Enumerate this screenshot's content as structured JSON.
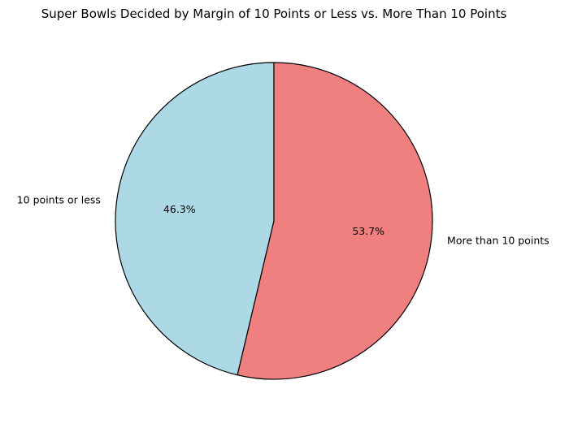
{
  "chart_data": {
    "type": "pie",
    "title": "Super Bowls Decided by Margin of 10 Points or Less vs. More Than 10 Points",
    "categories": [
      "10 points or less",
      "More than 10 points"
    ],
    "values": [
      46.3,
      53.7
    ],
    "value_labels": [
      "46.3%",
      "53.7%"
    ],
    "colors": [
      "#add8e6",
      "#f08080"
    ],
    "edge_color": "#000000",
    "start_angle_degrees": 90,
    "direction": "counterclockwise"
  }
}
